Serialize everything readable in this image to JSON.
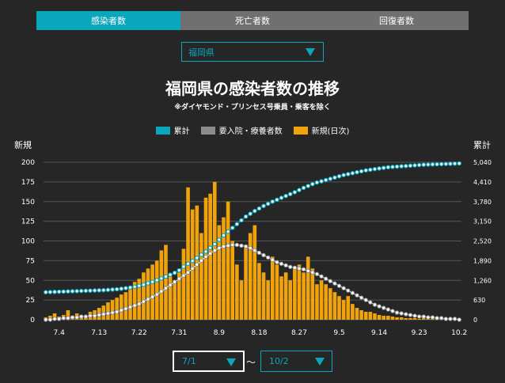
{
  "tabs": [
    {
      "label": "感染者数",
      "active": true
    },
    {
      "label": "死亡者数",
      "active": false
    },
    {
      "label": "回復者数",
      "active": false
    }
  ],
  "prefecture_select": {
    "value": "福岡県"
  },
  "range": {
    "start": "7/1",
    "tilde": "〜",
    "end": "10/2"
  },
  "colors": {
    "cumulative": "#0aa6bd",
    "hospitalized": "#8c8c8c",
    "new": "#f0a30a",
    "accent": "#0aa6bd"
  },
  "chart_data": {
    "type": "bar",
    "title": "福岡県の感染者数の推移",
    "subtitle": "※ダイヤモンド・プリンセス号乗員・乗客を除く",
    "ylabel_left": "新規",
    "ylabel_right": "累計",
    "ylim_left": [
      0,
      200
    ],
    "ylim_right": [
      0,
      5040
    ],
    "yticks_left": [
      "0",
      "25",
      "50",
      "75",
      "100",
      "125",
      "150",
      "175",
      "200"
    ],
    "yticks_right": [
      "0",
      "630",
      "1,260",
      "1,890",
      "2,520",
      "3,150",
      "3,780",
      "4,410",
      "5,040"
    ],
    "xticks": [
      {
        "label": "7.4",
        "day": 3
      },
      {
        "label": "7.13",
        "day": 12
      },
      {
        "label": "7.22",
        "day": 21
      },
      {
        "label": "7.31",
        "day": 30
      },
      {
        "label": "8.9",
        "day": 39
      },
      {
        "label": "8.18",
        "day": 48
      },
      {
        "label": "8.27",
        "day": 57
      },
      {
        "label": "9.5",
        "day": 66
      },
      {
        "label": "9.14",
        "day": 75
      },
      {
        "label": "9.23",
        "day": 84
      },
      {
        "label": "10.2",
        "day": 93
      }
    ],
    "grid": true,
    "legend_position": "top-center",
    "series": [
      {
        "name": "累計",
        "type": "line",
        "axis": "right",
        "values": [
          880,
          885,
          890,
          895,
          900,
          905,
          910,
          915,
          920,
          925,
          930,
          935,
          940,
          945,
          955,
          965,
          975,
          990,
          1010,
          1030,
          1055,
          1085,
          1120,
          1165,
          1210,
          1265,
          1320,
          1380,
          1440,
          1500,
          1580,
          1700,
          1790,
          1880,
          1980,
          2080,
          2180,
          2300,
          2420,
          2560,
          2700,
          2820,
          2940,
          3060,
          3180,
          3300,
          3390,
          3480,
          3560,
          3640,
          3710,
          3780,
          3840,
          3900,
          3960,
          4020,
          4080,
          4150,
          4220,
          4280,
          4340,
          4390,
          4430,
          4470,
          4510,
          4550,
          4590,
          4630,
          4660,
          4690,
          4720,
          4750,
          4780,
          4800,
          4820,
          4840,
          4860,
          4880,
          4890,
          4900,
          4910,
          4920,
          4930,
          4940,
          4950,
          4960,
          4965,
          4970,
          4975,
          4980,
          4985,
          4990,
          4995,
          5000
        ]
      },
      {
        "name": "要入院・療養者数",
        "type": "line",
        "axis": "left",
        "values": [
          0,
          0,
          1,
          1,
          2,
          2,
          3,
          3,
          4,
          4,
          5,
          5,
          6,
          7,
          8,
          9,
          10,
          12,
          14,
          16,
          18,
          20,
          23,
          26,
          29,
          32,
          36,
          40,
          44,
          48,
          52,
          56,
          60,
          65,
          70,
          75,
          80,
          84,
          88,
          91,
          93,
          94,
          95,
          95,
          94,
          93,
          91,
          88,
          85,
          82,
          79,
          76,
          73,
          71,
          69,
          67,
          66,
          65,
          64,
          62,
          60,
          58,
          55,
          52,
          49,
          46,
          43,
          40,
          37,
          34,
          31,
          28,
          25,
          22,
          19,
          17,
          15,
          13,
          11,
          9,
          8,
          7,
          6,
          5,
          4,
          4,
          3,
          3,
          2,
          2,
          1,
          1,
          1,
          0
        ]
      },
      {
        "name": "新規(日次)",
        "type": "bar",
        "axis": "left",
        "values": [
          3,
          5,
          8,
          4,
          6,
          12,
          5,
          8,
          6,
          4,
          10,
          12,
          15,
          18,
          22,
          25,
          28,
          32,
          35,
          40,
          48,
          52,
          60,
          65,
          70,
          75,
          88,
          95,
          55,
          50,
          60,
          90,
          168,
          140,
          145,
          110,
          155,
          160,
          175,
          120,
          130,
          150,
          100,
          70,
          50,
          95,
          110,
          120,
          72,
          60,
          50,
          80,
          70,
          55,
          60,
          50,
          65,
          70,
          60,
          80,
          65,
          45,
          50,
          45,
          40,
          35,
          30,
          25,
          30,
          20,
          15,
          12,
          10,
          10,
          8,
          6,
          5,
          5,
          4,
          3,
          3,
          2,
          2,
          2,
          1,
          2,
          1,
          1,
          1,
          1,
          1,
          1,
          1,
          1
        ]
      }
    ]
  }
}
